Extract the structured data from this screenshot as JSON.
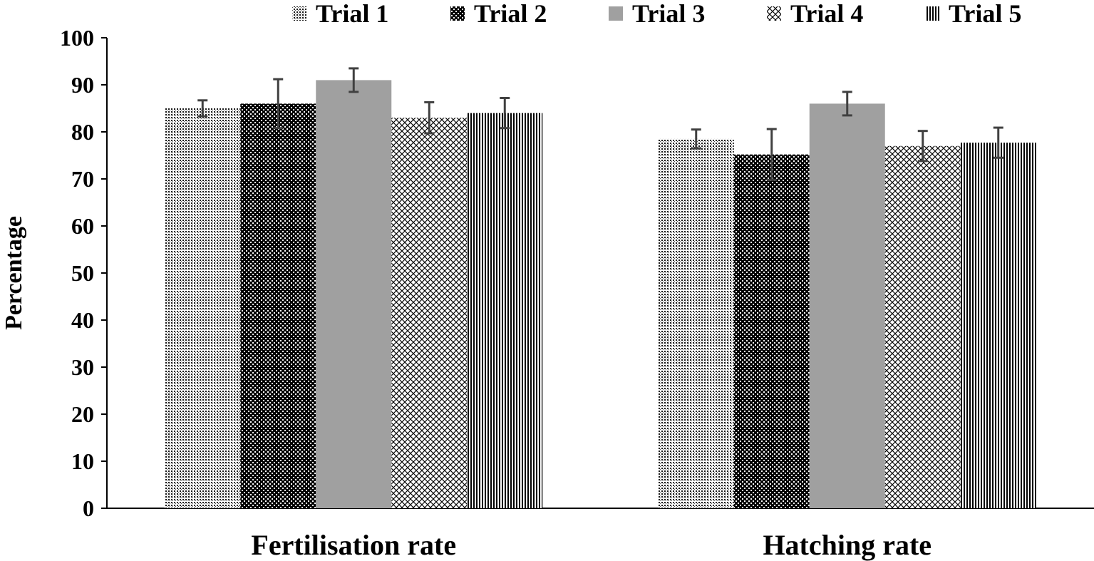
{
  "chart_data": {
    "type": "bar",
    "title": "",
    "xlabel": "",
    "ylabel": "Percentage",
    "ylim": [
      0,
      100
    ],
    "yticks": [
      0,
      10,
      20,
      30,
      40,
      50,
      60,
      70,
      80,
      90,
      100
    ],
    "categories": [
      "Fertilisation rate",
      "Hatching rate"
    ],
    "legend_position": "top",
    "grid": false,
    "series": [
      {
        "name": "Trial 1",
        "pattern": "fine-dots",
        "values": [
          85,
          78.5
        ],
        "errors": [
          1.7,
          2.0
        ]
      },
      {
        "name": "Trial 2",
        "pattern": "dense-checker",
        "values": [
          86,
          75.2
        ],
        "errors": [
          5.2,
          5.4
        ]
      },
      {
        "name": "Trial 3",
        "pattern": "solid-gray",
        "values": [
          91,
          86
        ],
        "errors": [
          2.5,
          2.5
        ]
      },
      {
        "name": "Trial 4",
        "pattern": "diamond-lattice",
        "values": [
          83,
          77
        ],
        "errors": [
          3.3,
          3.2
        ]
      },
      {
        "name": "Trial 5",
        "pattern": "vertical-stripes",
        "values": [
          84,
          77.7
        ],
        "errors": [
          3.2,
          3.2
        ]
      }
    ],
    "colors": {
      "trial3_fill": "#a0a0a0",
      "error_bar": "#404040",
      "axis": "#000000"
    }
  }
}
